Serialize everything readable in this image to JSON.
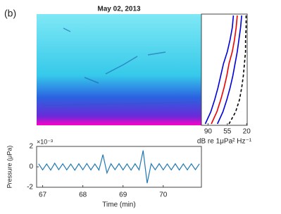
{
  "chart_data": [
    {
      "type": "spectrogram",
      "panel_label": "(b)",
      "title": "May 02, 2013"
    },
    {
      "type": "profile",
      "xlabel": "dB re 1μPa² Hz⁻¹",
      "xlim": [
        102,
        19
      ],
      "xticks": [
        90,
        55,
        20
      ],
      "series": [
        {
          "color": "#0000dd",
          "dash": false,
          "values": [
            44,
            46,
            50,
            55,
            62,
            67,
            72,
            78,
            85,
            95
          ]
        },
        {
          "color": "#ee0000",
          "dash": false,
          "values": [
            37,
            39,
            42,
            46,
            52,
            56,
            61,
            67,
            74,
            84
          ]
        },
        {
          "color": "#0000dd",
          "dash": false,
          "values": [
            29,
            31,
            34,
            37,
            41,
            45,
            50,
            56,
            63,
            73
          ]
        },
        {
          "color": "#000000",
          "dash": true,
          "values": [
            21,
            21,
            22,
            22,
            24,
            26,
            29,
            33,
            40,
            52
          ]
        }
      ]
    },
    {
      "type": "line",
      "xlabel": "Time (min)",
      "ylabel": "Pressure (μPa)",
      "y_exponent": "×10⁻³",
      "xlim": [
        66.85,
        70.95
      ],
      "xticks": [
        67,
        68,
        69,
        70
      ],
      "ylim": [
        -2,
        2
      ],
      "yticks": [
        -2,
        0,
        2
      ],
      "color": "#1f77b4",
      "x": [
        66.9,
        67.0,
        67.1,
        67.2,
        67.3,
        67.4,
        67.5,
        67.6,
        67.7,
        67.8,
        67.9,
        68.0,
        68.1,
        68.2,
        68.3,
        68.4,
        68.5,
        68.6,
        68.7,
        68.8,
        68.9,
        69.0,
        69.1,
        69.2,
        69.3,
        69.4,
        69.5,
        69.6,
        69.7,
        69.8,
        69.9,
        70.0,
        70.1,
        70.2,
        70.3,
        70.4,
        70.5,
        70.6,
        70.7,
        70.8,
        70.9
      ],
      "values": [
        0.3,
        -0.3,
        0.28,
        -0.32,
        0.35,
        -0.28,
        0.3,
        -0.3,
        0.27,
        -0.33,
        0.3,
        -0.29,
        0.32,
        -0.3,
        0.28,
        -0.31,
        1.2,
        -0.6,
        0.3,
        -0.28,
        0.31,
        -0.3,
        0.29,
        -0.32,
        0.3,
        -0.3,
        1.6,
        -1.6,
        0.3,
        -0.29,
        0.31,
        -0.3,
        0.28,
        -0.3,
        0.3,
        -0.31,
        0.29,
        -0.3,
        0.3,
        -0.28,
        0.3
      ]
    }
  ]
}
